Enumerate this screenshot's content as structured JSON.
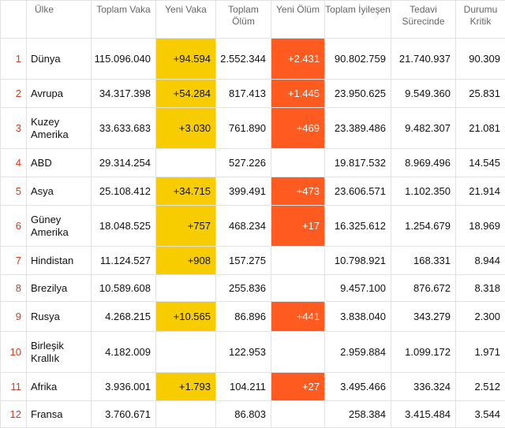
{
  "headers": {
    "rank": "",
    "country": "Ülke",
    "total_cases": "Toplam Vaka",
    "new_cases": "Yeni Vaka",
    "total_deaths": "Toplam Ölüm",
    "new_deaths": "Yeni Ölüm",
    "total_recovered": "Toplam İyileşen",
    "active": "Tedavi Sürecinde",
    "critical": "Durumu Kritik"
  },
  "colors": {
    "new_cases_bg": "#f7cd00",
    "new_deaths_bg": "#ff5a1f",
    "rank_text": "#d63b1f"
  },
  "rows": [
    {
      "rank": "1",
      "country": "Dünya",
      "total_cases": "115.096.040",
      "new_cases": "+94.594",
      "total_deaths": "2.552.344",
      "new_deaths": "+2.431",
      "recovered": "90.802.759",
      "active": "21.740.937",
      "critical": "90.309"
    },
    {
      "rank": "2",
      "country": "Avrupa",
      "total_cases": "34.317.398",
      "new_cases": "+54.284",
      "total_deaths": "817.413",
      "new_deaths": "+1.445",
      "recovered": "23.950.625",
      "active": "9.549.360",
      "critical": "25.831"
    },
    {
      "rank": "3",
      "country": "Kuzey Amerika",
      "total_cases": "33.633.683",
      "new_cases": "+3.030",
      "total_deaths": "761.890",
      "new_deaths": "+469",
      "recovered": "23.389.486",
      "active": "9.482.307",
      "critical": "21.081"
    },
    {
      "rank": "4",
      "country": "ABD",
      "total_cases": "29.314.254",
      "new_cases": "",
      "total_deaths": "527.226",
      "new_deaths": "",
      "recovered": "19.817.532",
      "active": "8.969.496",
      "critical": "14.545"
    },
    {
      "rank": "5",
      "country": "Asya",
      "total_cases": "25.108.412",
      "new_cases": "+34.715",
      "total_deaths": "399.491",
      "new_deaths": "+473",
      "recovered": "23.606.571",
      "active": "1.102.350",
      "critical": "21.914"
    },
    {
      "rank": "6",
      "country": "Güney Amerika",
      "total_cases": "18.048.525",
      "new_cases": "+757",
      "total_deaths": "468.234",
      "new_deaths": "+17",
      "recovered": "16.325.612",
      "active": "1.254.679",
      "critical": "18.969"
    },
    {
      "rank": "7",
      "country": "Hindistan",
      "total_cases": "11.124.527",
      "new_cases": "+908",
      "total_deaths": "157.275",
      "new_deaths": "",
      "recovered": "10.798.921",
      "active": "168.331",
      "critical": "8.944"
    },
    {
      "rank": "8",
      "country": "Brezilya",
      "total_cases": "10.589.608",
      "new_cases": "",
      "total_deaths": "255.836",
      "new_deaths": "",
      "recovered": "9.457.100",
      "active": "876.672",
      "critical": "8.318"
    },
    {
      "rank": "9",
      "country": "Rusya",
      "total_cases": "4.268.215",
      "new_cases": "+10.565",
      "total_deaths": "86.896",
      "new_deaths": "+441",
      "recovered": "3.838.040",
      "active": "343.279",
      "critical": "2.300"
    },
    {
      "rank": "10",
      "country": "Birleşik Krallık",
      "total_cases": "4.182.009",
      "new_cases": "",
      "total_deaths": "122.953",
      "new_deaths": "",
      "recovered": "2.959.884",
      "active": "1.099.172",
      "critical": "1.971"
    },
    {
      "rank": "11",
      "country": "Afrika",
      "total_cases": "3.936.001",
      "new_cases": "+1.793",
      "total_deaths": "104.211",
      "new_deaths": "+27",
      "recovered": "3.495.466",
      "active": "336.324",
      "critical": "2.512"
    },
    {
      "rank": "12",
      "country": "Fransa",
      "total_cases": "3.760.671",
      "new_cases": "",
      "total_deaths": "86.803",
      "new_deaths": "",
      "recovered": "258.384",
      "active": "3.415.484",
      "critical": "3.544"
    }
  ]
}
